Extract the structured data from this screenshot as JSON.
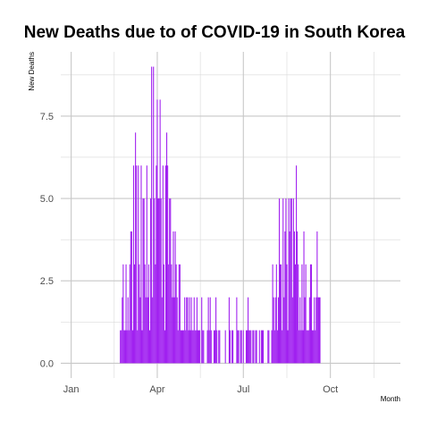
{
  "chart_data": {
    "type": "bar",
    "title": "New Deaths due to of COVID-19 in South Korea",
    "xlabel": "Month",
    "ylabel": "New  Deaths",
    "x_ticks": [
      "Jan",
      "Apr",
      "Jul",
      "Oct"
    ],
    "y_ticks": [
      "0.0",
      "2.5",
      "5.0",
      "7.5"
    ],
    "ylim": [
      -0.45,
      9.45
    ],
    "grid": true,
    "legend": "none",
    "bar_color": "#a020f0",
    "x_start": "2020-01-01",
    "x_end": "2020-12-03",
    "values": [
      0,
      0,
      0,
      0,
      0,
      0,
      0,
      0,
      0,
      0,
      0,
      0,
      0,
      0,
      0,
      0,
      0,
      0,
      0,
      0,
      0,
      0,
      0,
      0,
      0,
      0,
      0,
      0,
      0,
      0,
      0,
      0,
      0,
      0,
      0,
      0,
      0,
      0,
      0,
      0,
      0,
      0,
      0,
      0,
      0,
      0,
      0,
      0,
      0,
      0,
      0,
      0,
      1,
      1,
      2,
      3,
      1,
      1,
      3,
      1,
      2,
      1,
      3,
      4,
      4,
      1,
      6,
      3,
      7,
      6,
      1,
      6,
      3,
      2,
      6,
      1,
      5,
      5,
      3,
      2,
      6,
      2,
      3,
      1,
      5,
      9,
      2,
      9,
      5,
      3,
      6,
      8,
      5,
      5,
      8,
      5,
      2,
      6,
      3,
      1,
      6,
      7,
      6,
      3,
      5,
      5,
      3,
      2,
      4,
      2,
      4,
      3,
      2,
      1,
      3,
      3,
      1,
      1,
      1,
      1,
      2,
      1,
      2,
      2,
      1,
      2,
      1,
      2,
      1,
      1,
      2,
      1,
      1,
      2,
      1,
      1,
      1,
      0,
      2,
      1,
      1,
      0,
      0,
      0,
      1,
      2,
      1,
      2,
      1,
      0,
      0,
      1,
      1,
      2,
      1,
      0,
      1,
      1,
      0,
      0,
      0,
      0,
      0,
      1,
      0,
      0,
      0,
      2,
      1,
      0,
      1,
      1,
      0,
      0,
      0,
      2,
      1,
      1,
      0,
      1,
      1,
      0,
      1,
      0,
      0,
      1,
      1,
      2,
      1,
      1,
      1,
      0,
      1,
      1,
      0,
      1,
      1,
      0,
      0,
      1,
      0,
      1,
      1,
      1,
      0,
      0,
      0,
      0,
      1,
      1,
      0,
      0,
      1,
      3,
      2,
      1,
      2,
      3,
      1,
      2,
      5,
      3,
      3,
      1,
      5,
      2,
      4,
      5,
      3,
      1,
      5,
      4,
      5,
      5,
      2,
      5,
      4,
      3,
      6,
      4,
      3,
      1,
      2,
      1,
      3,
      1,
      4,
      2,
      3,
      1,
      1,
      1,
      2,
      3,
      3,
      1,
      1,
      2,
      1,
      2,
      4,
      2,
      2,
      2
    ]
  }
}
